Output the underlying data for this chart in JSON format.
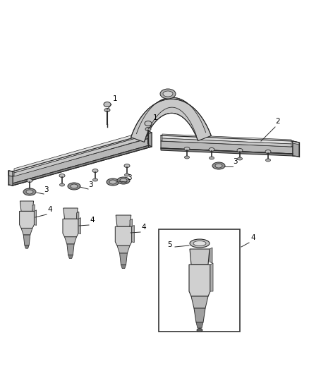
{
  "bg_color": "#ffffff",
  "fig_width": 4.38,
  "fig_height": 5.33,
  "dpi": 100,
  "line_color": "#2a2a2a",
  "rail_face_color": "#d8d8d8",
  "rail_top_color": "#b8b8b8",
  "rail_side_color": "#a0a0a0",
  "rail_dark_color": "#888888",
  "tube_color": "#c8c8c8",
  "tube_dark": "#909090",
  "injector_body": "#cccccc",
  "injector_dark": "#999999",
  "clip_color": "#aaaaaa",
  "bolt_color": "#bbbbbb"
}
